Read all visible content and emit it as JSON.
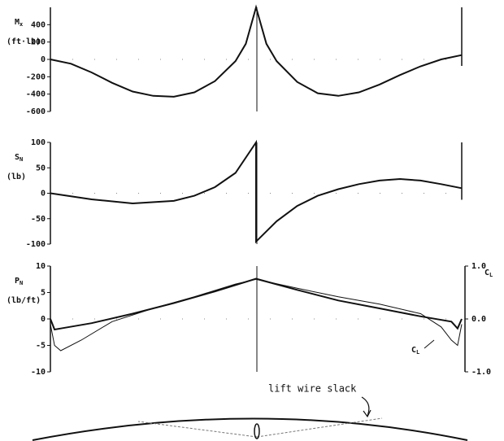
{
  "chart_data": [
    {
      "type": "line",
      "ylabel": {
        "text": "M",
        "sub": "x"
      },
      "yunit": "(ft·lb)",
      "ylim": [
        -600,
        600
      ],
      "yticks": [
        400,
        200,
        0,
        -200,
        -400,
        -600
      ],
      "xlim": [
        -1,
        1
      ],
      "series": [
        {
          "color": "#111",
          "width": 2,
          "x": [
            -1,
            -0.9,
            -0.8,
            -0.7,
            -0.6,
            -0.5,
            -0.4,
            -0.3,
            -0.2,
            -0.1,
            -0.05,
            0,
            0.05,
            0.1,
            0.2,
            0.3,
            0.4,
            0.5,
            0.6,
            0.7,
            0.8,
            0.9,
            1
          ],
          "values": [
            0,
            -50,
            -150,
            -270,
            -370,
            -420,
            -430,
            -380,
            -250,
            -20,
            180,
            600,
            180,
            -20,
            -260,
            -390,
            -420,
            -380,
            -290,
            -180,
            -80,
            0,
            50
          ]
        }
      ]
    },
    {
      "type": "line",
      "ylabel": {
        "text": "S",
        "sub": "N"
      },
      "yunit": "(lb)",
      "ylim": [
        -100,
        100
      ],
      "yticks": [
        100,
        50,
        0,
        -50,
        -100
      ],
      "xlim": [
        -1,
        1
      ],
      "series": [
        {
          "color": "#111",
          "width": 2,
          "x": [
            -1,
            -0.8,
            -0.6,
            -0.4,
            -0.3,
            -0.2,
            -0.1,
            0,
            0,
            0.1,
            0.2,
            0.3,
            0.4,
            0.5,
            0.6,
            0.7,
            0.8,
            0.9,
            1
          ],
          "values": [
            0,
            -12,
            -20,
            -15,
            -5,
            12,
            40,
            100,
            -95,
            -55,
            -25,
            -5,
            8,
            18,
            25,
            28,
            25,
            18,
            10
          ]
        }
      ]
    },
    {
      "type": "line",
      "ylabel": {
        "text": "P",
        "sub": "N"
      },
      "yunit": "(lb/ft)",
      "ylim": [
        -10,
        10
      ],
      "yticks": [
        10,
        5,
        0,
        -5,
        -10
      ],
      "xlim": [
        -1,
        1
      ],
      "y2label": {
        "text": "C",
        "sub": "L"
      },
      "y2lim": [
        -1,
        1
      ],
      "y2ticks": [
        {
          "value": 1,
          "label": "1.0"
        },
        {
          "value": 0,
          "label": "0.0"
        },
        {
          "value": -1,
          "label": "-1.0"
        }
      ],
      "annotation": {
        "text": "C",
        "sub": "L"
      },
      "series": [
        {
          "color": "#111",
          "width": 2,
          "x": [
            -1,
            -0.98,
            -0.95,
            -0.8,
            -0.6,
            -0.4,
            -0.2,
            0,
            0.2,
            0.4,
            0.6,
            0.8,
            0.95,
            0.98,
            1
          ],
          "values": [
            0,
            -2,
            -1.8,
            -0.8,
            1,
            3,
            5.2,
            7.6,
            5.5,
            3.5,
            2,
            0.5,
            -0.5,
            -1.8,
            0
          ]
        },
        {
          "color": "#111",
          "width": 1,
          "axis": "y2",
          "x": [
            -1,
            -0.98,
            -0.95,
            -0.85,
            -0.7,
            -0.5,
            -0.3,
            -0.1,
            0,
            0.2,
            0.4,
            0.6,
            0.8,
            0.9,
            0.95,
            0.98,
            1
          ],
          "values": [
            -0.1,
            -0.5,
            -0.6,
            -0.4,
            -0.05,
            0.2,
            0.42,
            0.66,
            0.75,
            0.58,
            0.42,
            0.28,
            0.1,
            -0.15,
            -0.4,
            -0.5,
            -0.1
          ]
        }
      ]
    }
  ],
  "diagram": {
    "label": "lift wire slack"
  }
}
